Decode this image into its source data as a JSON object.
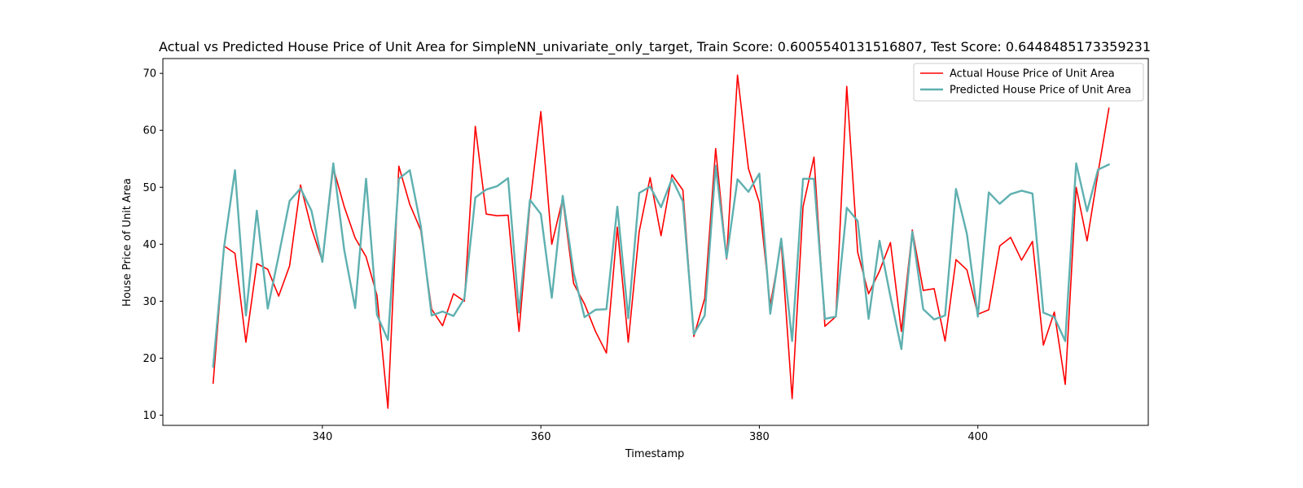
{
  "chart_data": {
    "type": "line",
    "title": "Actual vs Predicted House Price of Unit Area for SimpleNN_univariate_only_target, Train Score: 0.6005540131516807, Test Score: 0.6448485173359231",
    "xlabel": "Timestamp",
    "ylabel": "House Price of Unit Area",
    "xlim": [
      325.4,
      415.6
    ],
    "ylim": [
      8.2,
      72.6
    ],
    "xticks": [
      340,
      360,
      380,
      400
    ],
    "yticks": [
      10,
      20,
      30,
      40,
      50,
      60,
      70
    ],
    "grid": false,
    "legend_position": "top-right",
    "x": [
      330,
      331,
      332,
      333,
      334,
      335,
      336,
      337,
      338,
      339,
      340,
      341,
      342,
      343,
      344,
      345,
      346,
      347,
      348,
      349,
      350,
      351,
      352,
      353,
      354,
      355,
      356,
      357,
      358,
      359,
      360,
      361,
      362,
      363,
      364,
      365,
      366,
      367,
      368,
      369,
      370,
      371,
      372,
      373,
      374,
      375,
      376,
      377,
      378,
      379,
      380,
      381,
      382,
      383,
      384,
      385,
      386,
      387,
      388,
      389,
      390,
      391,
      392,
      393,
      394,
      395,
      396,
      397,
      398,
      399,
      400,
      401,
      402,
      403,
      404,
      405,
      406,
      407,
      408,
      409,
      410,
      411,
      412
    ],
    "series": [
      {
        "name": "Actual House Price of Unit Area",
        "color": "#ff0000",
        "line_width": 1.6,
        "values": [
          15.6,
          39.7,
          38.4,
          22.8,
          36.6,
          35.6,
          30.9,
          36.2,
          50.4,
          42.8,
          37.0,
          53.4,
          46.6,
          41.1,
          37.8,
          31.0,
          11.2,
          53.7,
          47.0,
          42.5,
          28.6,
          25.7,
          31.3,
          30.0,
          60.7,
          45.3,
          45.0,
          45.1,
          24.7,
          47.0,
          63.3,
          40.0,
          48.0,
          33.1,
          29.5,
          24.7,
          20.9,
          43.0,
          22.8,
          42.2,
          51.7,
          41.5,
          52.2,
          49.5,
          23.8,
          30.5,
          56.8,
          37.4,
          69.7,
          53.3,
          47.3,
          29.3,
          40.3,
          12.9,
          46.6,
          55.3,
          25.6,
          27.3,
          67.7,
          38.6,
          31.3,
          35.3,
          40.3,
          24.7,
          42.5,
          31.9,
          32.2,
          23.0,
          37.3,
          35.5,
          27.7,
          28.5,
          39.7,
          41.2,
          37.2,
          40.5,
          22.3,
          28.1,
          15.4,
          50.0,
          40.6,
          52.5,
          63.9
        ]
      },
      {
        "name": "Predicted House Price of Unit Area",
        "color": "#5fb0b0",
        "line_width": 2.4,
        "values": [
          18.5,
          39.5,
          53.0,
          27.5,
          45.9,
          28.7,
          38.0,
          47.6,
          49.8,
          45.9,
          36.9,
          54.2,
          39.0,
          28.8,
          51.5,
          27.6,
          23.2,
          51.5,
          53.0,
          43.3,
          27.5,
          28.2,
          27.4,
          30.5,
          48.2,
          49.6,
          50.2,
          51.6,
          28.0,
          47.8,
          45.3,
          30.6,
          48.5,
          35.0,
          27.2,
          28.5,
          28.6,
          46.6,
          27.0,
          49.0,
          50.1,
          46.5,
          51.5,
          47.5,
          24.2,
          27.5,
          53.8,
          37.6,
          51.4,
          49.2,
          52.4,
          27.8,
          41.0,
          23.0,
          51.5,
          51.5,
          26.9,
          27.3,
          46.4,
          44.1,
          26.9,
          40.6,
          30.8,
          21.6,
          42.2,
          28.6,
          26.8,
          27.5,
          49.7,
          41.8,
          27.3,
          49.1,
          47.1,
          48.8,
          49.4,
          48.9,
          28.0,
          27.2,
          23.0,
          54.2,
          45.8,
          53.1,
          54.0
        ]
      }
    ]
  }
}
